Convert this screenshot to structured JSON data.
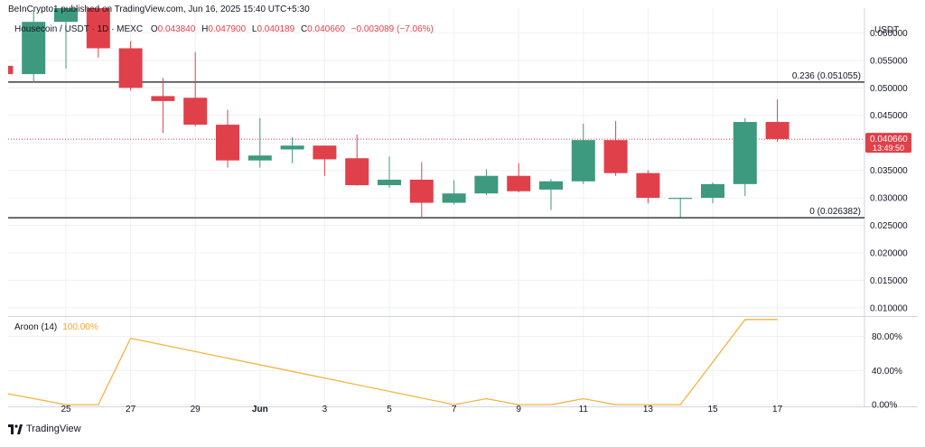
{
  "header": {
    "published": "BeInCrypto1 published on TradingView.com, Jun 16, 2025 15:40 UTC+5:30"
  },
  "symbol": {
    "pair": "Housecoin / USDT · 1D · MEXC",
    "open_label": "O",
    "open": "0.043840",
    "high_label": "H",
    "high": "0.047900",
    "low_label": "L",
    "low": "0.040189",
    "close_label": "C",
    "close": "0.040660",
    "change": "−0.003089 (−7.06%)"
  },
  "price_axis": {
    "currency": "USDT",
    "last_price": "0.040660",
    "countdown": "13:49:50"
  },
  "indicator": {
    "name": "Aroon (14)",
    "value": "100.00%"
  },
  "footer": {
    "brand": "TradingView"
  },
  "colors": {
    "up": "#3d9a7e",
    "down": "#e0404a",
    "aroon": "#f5b342",
    "last_price_line": "#e0404a"
  },
  "chart_data": [
    {
      "type": "candlestick",
      "title": "",
      "y_ticks": [
        "0.060000",
        "0.055000",
        "0.050000",
        "0.045000",
        "0.040000",
        "0.035000",
        "0.030000",
        "0.025000",
        "0.020000",
        "0.015000",
        "0.010000"
      ],
      "ylim": [
        0.0085,
        0.0645
      ],
      "x_ticks": [
        {
          "label": "25",
          "day": 25
        },
        {
          "label": "27",
          "day": 27
        },
        {
          "label": "29",
          "day": 29
        },
        {
          "label": "Jun",
          "day": 31
        },
        {
          "label": "3",
          "day": 33
        },
        {
          "label": "5",
          "day": 35
        },
        {
          "label": "7",
          "day": 37
        },
        {
          "label": "9",
          "day": 39
        },
        {
          "label": "11",
          "day": 41
        },
        {
          "label": "13",
          "day": 43
        },
        {
          "label": "15",
          "day": 45
        },
        {
          "label": "17",
          "day": 47
        }
      ],
      "candles": [
        {
          "d": 23,
          "o": 0.054,
          "h": 0.0545,
          "l": 0.052,
          "c": 0.0525
        },
        {
          "d": 24,
          "o": 0.0525,
          "h": 0.064,
          "l": 0.051,
          "c": 0.062
        },
        {
          "d": 25,
          "o": 0.062,
          "h": 0.065,
          "l": 0.0535,
          "c": 0.065
        },
        {
          "d": 26,
          "o": 0.065,
          "h": 0.065,
          "l": 0.0555,
          "c": 0.0572
        },
        {
          "d": 27,
          "o": 0.0572,
          "h": 0.0585,
          "l": 0.0495,
          "c": 0.05
        },
        {
          "d": 28,
          "o": 0.0485,
          "h": 0.0518,
          "l": 0.0418,
          "c": 0.0476
        },
        {
          "d": 29,
          "o": 0.0482,
          "h": 0.0565,
          "l": 0.043,
          "c": 0.0433
        },
        {
          "d": 30,
          "o": 0.0433,
          "h": 0.046,
          "l": 0.0355,
          "c": 0.0368
        },
        {
          "d": 31,
          "o": 0.0368,
          "h": 0.0445,
          "l": 0.0355,
          "c": 0.0377
        },
        {
          "d": 32,
          "o": 0.0388,
          "h": 0.041,
          "l": 0.0363,
          "c": 0.0395
        },
        {
          "d": 33,
          "o": 0.0395,
          "h": 0.0395,
          "l": 0.034,
          "c": 0.037
        },
        {
          "d": 34,
          "o": 0.0372,
          "h": 0.0415,
          "l": 0.0322,
          "c": 0.0323
        },
        {
          "d": 35,
          "o": 0.0323,
          "h": 0.0375,
          "l": 0.0318,
          "c": 0.0333
        },
        {
          "d": 36,
          "o": 0.0333,
          "h": 0.0365,
          "l": 0.0262,
          "c": 0.0291
        },
        {
          "d": 37,
          "o": 0.0291,
          "h": 0.0332,
          "l": 0.0288,
          "c": 0.0308
        },
        {
          "d": 38,
          "o": 0.0308,
          "h": 0.0352,
          "l": 0.0305,
          "c": 0.034
        },
        {
          "d": 39,
          "o": 0.034,
          "h": 0.0363,
          "l": 0.031,
          "c": 0.0312
        },
        {
          "d": 40,
          "o": 0.0315,
          "h": 0.0334,
          "l": 0.0278,
          "c": 0.033
        },
        {
          "d": 41,
          "o": 0.033,
          "h": 0.0435,
          "l": 0.0325,
          "c": 0.0405
        },
        {
          "d": 42,
          "o": 0.0405,
          "h": 0.044,
          "l": 0.034,
          "c": 0.0345
        },
        {
          "d": 43,
          "o": 0.0345,
          "h": 0.035,
          "l": 0.029,
          "c": 0.03
        },
        {
          "d": 44,
          "o": 0.03,
          "h": 0.03,
          "l": 0.0265,
          "c": 0.03
        },
        {
          "d": 45,
          "o": 0.03,
          "h": 0.0328,
          "l": 0.029,
          "c": 0.0325
        },
        {
          "d": 46,
          "o": 0.0325,
          "h": 0.0445,
          "l": 0.0303,
          "c": 0.0438
        },
        {
          "d": 47,
          "o": 0.0438,
          "h": 0.0479,
          "l": 0.0402,
          "c": 0.0407
        }
      ],
      "levels": [
        {
          "label": "0.236 (0.051055)",
          "value": 0.051055
        },
        {
          "label": "0 (0.026382)",
          "value": 0.026382
        }
      ],
      "last_price": 0.04066
    },
    {
      "type": "line",
      "title": "Aroon (14)",
      "y_ticks": [
        "80.00%",
        "40.00%",
        "0.00%"
      ],
      "ylim": [
        -2,
        103
      ],
      "series": [
        {
          "points": [
            {
              "d": 22.9,
              "v": 15
            },
            {
              "d": 25.0,
              "v": 0
            },
            {
              "d": 26.0,
              "v": 0
            },
            {
              "d": 27.0,
              "v": 78
            },
            {
              "d": 37.0,
              "v": 0
            },
            {
              "d": 38.0,
              "v": 7
            },
            {
              "d": 39.0,
              "v": 0
            },
            {
              "d": 40.0,
              "v": 0
            },
            {
              "d": 41.0,
              "v": 7
            },
            {
              "d": 42.0,
              "v": 0
            },
            {
              "d": 44.0,
              "v": 0
            },
            {
              "d": 46.0,
              "v": 100
            },
            {
              "d": 47.0,
              "v": 100
            }
          ]
        }
      ]
    }
  ]
}
